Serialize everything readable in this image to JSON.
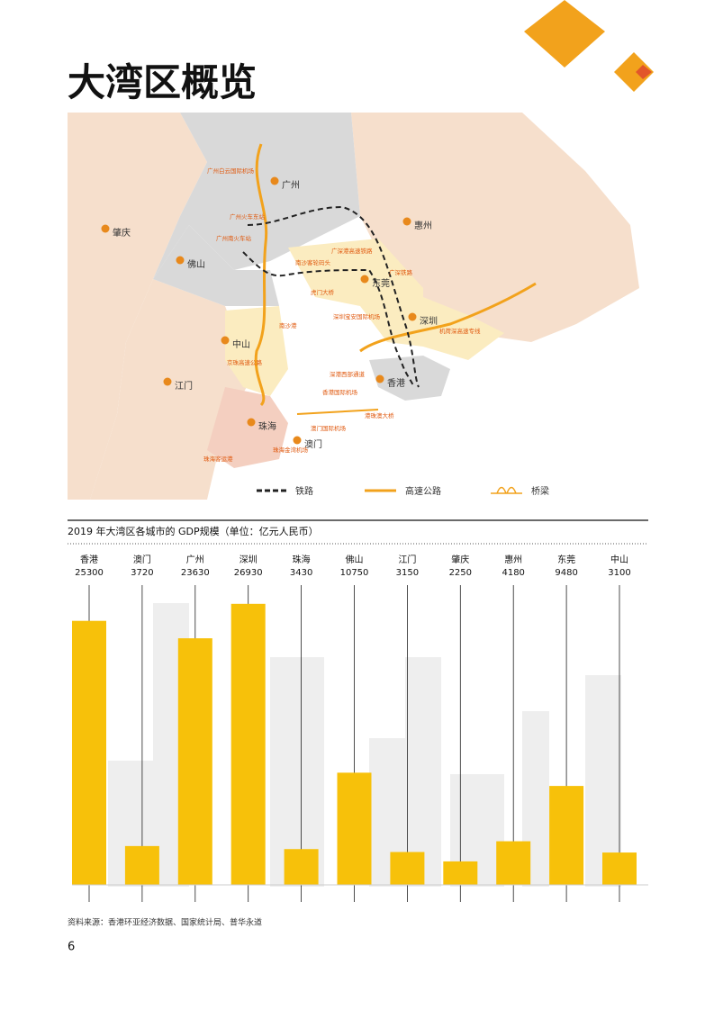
{
  "header": {
    "title": "大湾区概览"
  },
  "map": {
    "cities": [
      "广州",
      "肇庆",
      "佛山",
      "惠州",
      "东莞",
      "深圳",
      "中山",
      "江门",
      "珠海",
      "澳门",
      "香港"
    ],
    "places": [
      "广州白云国际机场",
      "广州火车东站",
      "广州南火车站",
      "南沙客轮码头",
      "虎门大桥",
      "广深港高速铁路",
      "广深铁路",
      "南沙港",
      "深圳宝安国际机场",
      "机荷深高速专线",
      "京珠高速公路",
      "深港西部通道",
      "香港国际机场",
      "澳门国际机场",
      "港珠澳大桥",
      "珠海金湾机场",
      "珠海客运港"
    ],
    "legend": [
      "铁路",
      "高速公路",
      "桥梁"
    ]
  },
  "chart_data": {
    "type": "bar",
    "title": "2019 年大湾区各城市的 GDP规模（单位：亿元人民币）",
    "categories": [
      "香港",
      "澳门",
      "广州",
      "深圳",
      "珠海",
      "佛山",
      "江门",
      "肇庆",
      "惠州",
      "东莞",
      "中山"
    ],
    "values": [
      25300,
      3720,
      23630,
      26930,
      3430,
      10750,
      3150,
      2250,
      4180,
      9480,
      3100
    ],
    "color": "#f7c10a",
    "ylim": [
      0,
      27000
    ]
  },
  "footer": {
    "source": "资料来源：香港环亚经济数据、国家统计局、普华永道",
    "page": "6"
  }
}
